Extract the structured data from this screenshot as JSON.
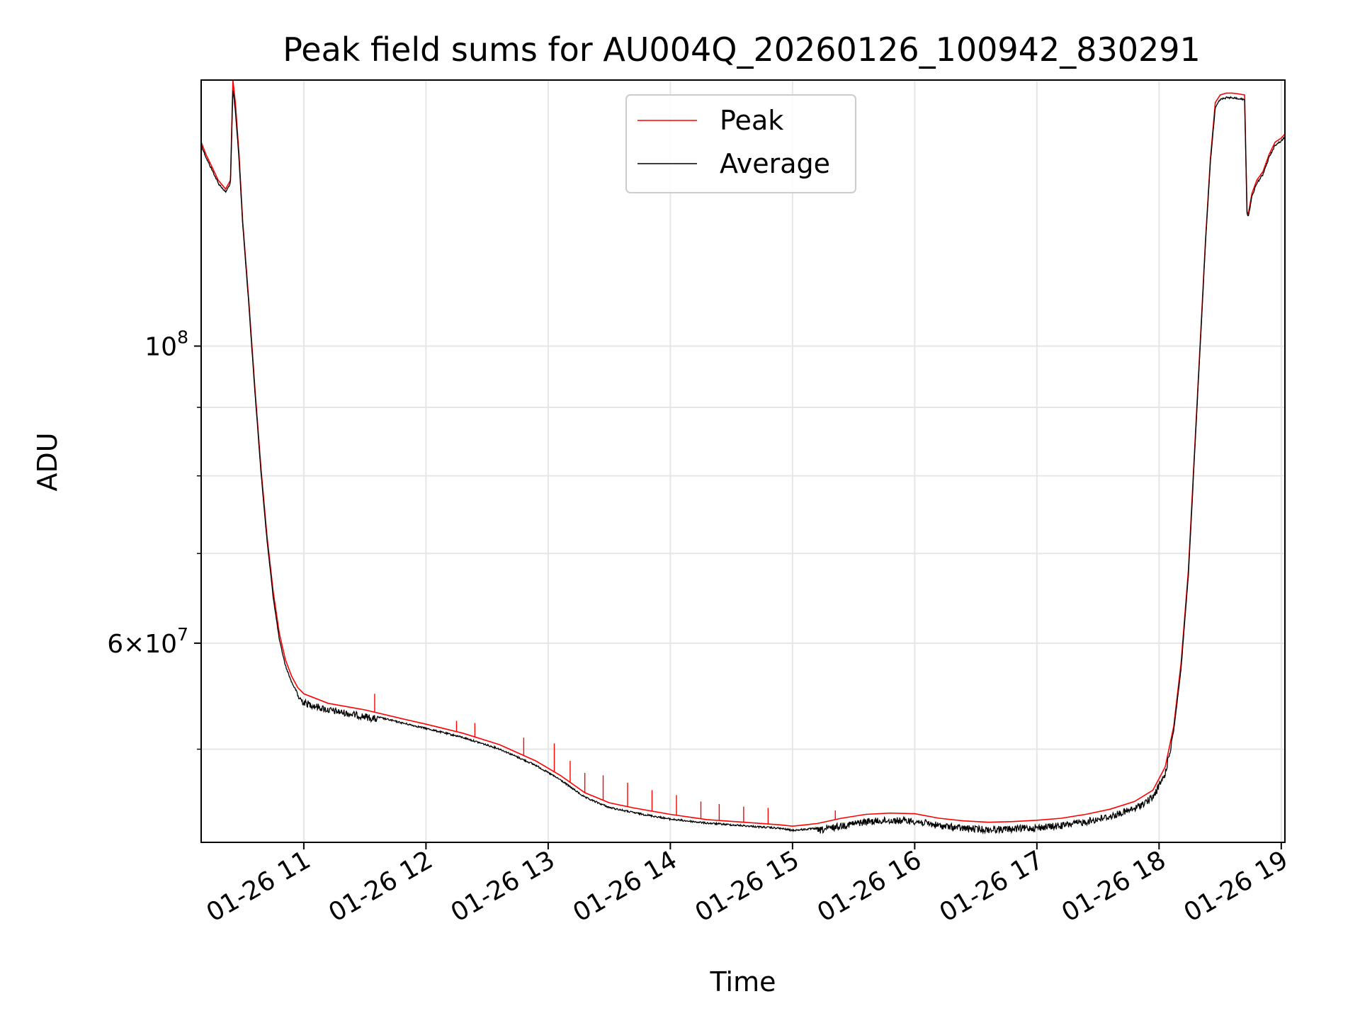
{
  "chart_data": {
    "type": "line",
    "title": "Peak field sums for AU004Q_20260126_100942_830291",
    "xlabel": "Time",
    "ylabel": "ADU",
    "yscale": "log",
    "grid": true,
    "legend_position": "top-center",
    "xlim": [
      10.16,
      19.03
    ],
    "ylim": [
      42600000,
      158000000
    ],
    "x_unit": "hours on 01-26",
    "x_ticks": [
      {
        "value": 11,
        "label": "01-26 11"
      },
      {
        "value": 12,
        "label": "01-26 12"
      },
      {
        "value": 13,
        "label": "01-26 13"
      },
      {
        "value": 14,
        "label": "01-26 14"
      },
      {
        "value": 15,
        "label": "01-26 15"
      },
      {
        "value": 16,
        "label": "01-26 16"
      },
      {
        "value": 17,
        "label": "01-26 17"
      },
      {
        "value": 18,
        "label": "01-26 18"
      },
      {
        "value": 19,
        "label": "01-26 19"
      }
    ],
    "y_ticks": [
      {
        "value": 100000000,
        "base": "10",
        "exp": "8"
      },
      {
        "value": 60000000,
        "mant": "6",
        "base": "10",
        "exp": "7"
      }
    ],
    "y_minor_ticks": [
      50000000,
      70000000,
      80000000,
      90000000
    ],
    "series": [
      {
        "name": "Peak",
        "color": "#ff0000",
        "x": [
          10.16,
          10.2,
          10.25,
          10.3,
          10.36,
          10.4,
          10.42,
          10.44,
          10.47,
          10.5,
          10.55,
          10.6,
          10.65,
          10.7,
          10.75,
          10.8,
          10.85,
          10.9,
          10.95,
          11.0,
          11.2,
          11.5,
          11.8,
          12.0,
          12.3,
          12.6,
          12.9,
          13.1,
          13.3,
          13.5,
          13.7,
          14.0,
          14.3,
          14.6,
          14.9,
          15.0,
          15.2,
          15.4,
          15.6,
          15.8,
          16.0,
          16.2,
          16.4,
          16.6,
          16.8,
          17.0,
          17.2,
          17.4,
          17.6,
          17.8,
          17.95,
          18.05,
          18.12,
          18.18,
          18.24,
          18.28,
          18.33,
          18.38,
          18.42,
          18.46,
          18.5,
          18.55,
          18.6,
          18.65,
          18.7,
          18.72,
          18.73,
          18.76,
          18.8,
          18.85,
          18.9,
          18.95,
          19.0,
          19.03
        ],
        "values": [
          142000000,
          139000000,
          136000000,
          133000000,
          131000000,
          133000000,
          158000000,
          152000000,
          139000000,
          124000000,
          108000000,
          93000000,
          81000000,
          72000000,
          65500000,
          61000000,
          58300000,
          56700000,
          55600000,
          55000000,
          54100000,
          53500000,
          52700000,
          52200000,
          51400000,
          50400000,
          49000000,
          47800000,
          46400000,
          45600000,
          45200000,
          44700000,
          44300000,
          44100000,
          43900000,
          43800000,
          44000000,
          44400000,
          44700000,
          44800000,
          44750000,
          44400000,
          44200000,
          44100000,
          44150000,
          44250000,
          44400000,
          44700000,
          45100000,
          45700000,
          46600000,
          48500000,
          52000000,
          58000000,
          68000000,
          80000000,
          98000000,
          120000000,
          138000000,
          152000000,
          154000000,
          154500000,
          154500000,
          154300000,
          154000000,
          126000000,
          125500000,
          130000000,
          133000000,
          135000000,
          139000000,
          142000000,
          143000000,
          144000000
        ],
        "spikes": [
          {
            "x": 11.58,
            "value": 55000000
          },
          {
            "x": 12.25,
            "value": 52500000
          },
          {
            "x": 12.4,
            "value": 52300000
          },
          {
            "x": 12.8,
            "value": 51000000
          },
          {
            "x": 13.05,
            "value": 50500000
          },
          {
            "x": 13.18,
            "value": 49000000
          },
          {
            "x": 13.3,
            "value": 48000000
          },
          {
            "x": 13.45,
            "value": 47800000
          },
          {
            "x": 13.65,
            "value": 47200000
          },
          {
            "x": 13.85,
            "value": 46600000
          },
          {
            "x": 14.05,
            "value": 46200000
          },
          {
            "x": 14.25,
            "value": 45700000
          },
          {
            "x": 14.4,
            "value": 45500000
          },
          {
            "x": 14.6,
            "value": 45300000
          },
          {
            "x": 14.8,
            "value": 45200000
          },
          {
            "x": 15.35,
            "value": 45000000
          }
        ]
      },
      {
        "name": "Average",
        "color": "#000000",
        "x": [
          10.16,
          10.2,
          10.25,
          10.3,
          10.36,
          10.4,
          10.42,
          10.44,
          10.47,
          10.5,
          10.55,
          10.6,
          10.65,
          10.7,
          10.75,
          10.8,
          10.85,
          10.9,
          10.95,
          11.0,
          11.2,
          11.5,
          11.8,
          12.0,
          12.3,
          12.6,
          12.9,
          13.1,
          13.3,
          13.5,
          13.7,
          14.0,
          14.3,
          14.6,
          14.9,
          15.0,
          15.2,
          15.4,
          15.6,
          15.8,
          16.0,
          16.2,
          16.4,
          16.6,
          16.8,
          17.0,
          17.2,
          17.4,
          17.6,
          17.8,
          17.95,
          18.05,
          18.12,
          18.18,
          18.24,
          18.28,
          18.33,
          18.38,
          18.42,
          18.46,
          18.5,
          18.55,
          18.6,
          18.65,
          18.7,
          18.72,
          18.73,
          18.76,
          18.8,
          18.85,
          18.9,
          18.95,
          19.0,
          19.03
        ],
        "values": [
          141500000,
          138500000,
          135500000,
          132500000,
          130500000,
          132500000,
          156000000,
          150000000,
          138000000,
          123500000,
          107500000,
          92500000,
          80500000,
          71500000,
          65000000,
          60400000,
          57800000,
          56200000,
          55100000,
          54500000,
          53800000,
          53200000,
          52400000,
          51900000,
          51100000,
          50100000,
          48700000,
          47500000,
          46100000,
          45300000,
          44900000,
          44400000,
          44100000,
          43900000,
          43700000,
          43550000,
          43700000,
          44100000,
          44400000,
          44500000,
          44450000,
          44100000,
          43900000,
          43800000,
          43850000,
          43950000,
          44100000,
          44400000,
          44800000,
          45400000,
          46300000,
          48200000,
          51700000,
          57500000,
          67500000,
          79500000,
          97500000,
          119500000,
          137500000,
          151000000,
          153000000,
          153500000,
          153500000,
          153300000,
          153000000,
          125500000,
          125000000,
          129500000,
          132500000,
          134500000,
          138500000,
          141500000,
          142500000,
          143500000
        ]
      }
    ]
  }
}
